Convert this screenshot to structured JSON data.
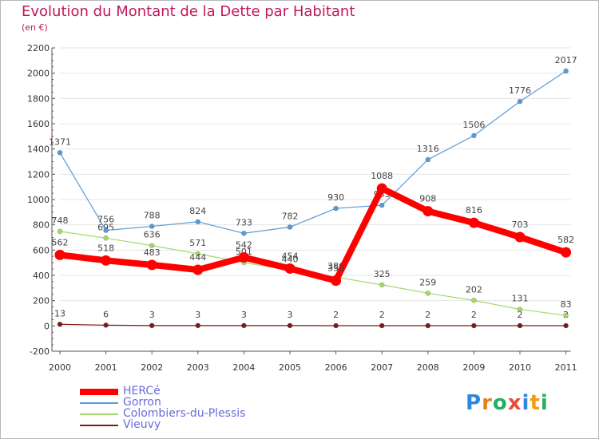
{
  "title": "Evolution du Montant de la Dette par Habitant",
  "subtitle": "(en €)",
  "logo": {
    "text": "Proxiti",
    "letter_colors": [
      "#2e86de",
      "#e67e22",
      "#27ae60",
      "#e74c3c",
      "#2e86de",
      "#f39c12",
      "#27ae60"
    ]
  },
  "colors": {
    "axis": "#555555",
    "grid": "#e6e6e6",
    "tick_text": "#333333",
    "axis_minor_tick": "#c2185b",
    "label_text": "#444444",
    "legend_text": "#6a6ae0",
    "frame": "#b8b8b8"
  },
  "chart_data": {
    "type": "line",
    "title": "Evolution du Montant de la Dette par Habitant",
    "subtitle": "(en €)",
    "categories": [
      "2000",
      "2001",
      "2002",
      "2003",
      "2004",
      "2005",
      "2006",
      "2007",
      "2008",
      "2009",
      "2010",
      "2011"
    ],
    "ylim": [
      -200,
      2200
    ],
    "yticks": [
      -200,
      0,
      200,
      400,
      600,
      800,
      1000,
      1200,
      1400,
      1600,
      1800,
      2000,
      2200
    ],
    "grid": "horizontal",
    "legend_position": "bottom-left",
    "series": [
      {
        "name": "Vieuvy",
        "color": "#7b1c1c",
        "values": [
          13,
          6,
          3,
          3,
          3,
          3,
          2,
          2,
          2,
          2,
          2,
          2
        ],
        "labels": [
          "13",
          "6",
          "3",
          "3",
          "3",
          "3",
          "2",
          "2",
          "2",
          "2",
          "2",
          "2"
        ]
      },
      {
        "name": "Colombiers-du-Plessis",
        "color": "#a5d86b",
        "values": [
          748,
          695,
          636,
          571,
          501,
          440,
          386,
          325,
          259,
          202,
          131,
          83
        ],
        "labels": [
          "748",
          "695",
          "636",
          "571",
          "501",
          "440",
          "386",
          "325",
          "259",
          "202",
          "131",
          "83"
        ]
      },
      {
        "name": "Gorron",
        "color": "#5b9bd5",
        "values": [
          1371,
          756,
          788,
          824,
          733,
          782,
          930,
          955,
          1316,
          1506,
          1776,
          2017
        ],
        "labels": [
          "1371",
          "756",
          "788",
          "824",
          "733",
          "782",
          "930",
          "955",
          "1316",
          "1506",
          "1776",
          "2017"
        ]
      },
      {
        "name": "HERCé",
        "color": "#ff0000",
        "values": [
          562,
          518,
          483,
          444,
          542,
          454,
          358,
          1088,
          908,
          816,
          703,
          582
        ],
        "labels": [
          "562",
          "518",
          "483",
          "444",
          "542",
          "454",
          "358",
          "1088",
          "908",
          "816",
          "703",
          "582"
        ]
      }
    ],
    "legend": [
      {
        "name": "HERCé",
        "color": "#ff0000",
        "weight": "thick"
      },
      {
        "name": "Gorron",
        "color": "#5b9bd5",
        "weight": "thin"
      },
      {
        "name": "Colombiers-du-Plessis",
        "color": "#a5d86b",
        "weight": "thin"
      },
      {
        "name": "Vieuvy",
        "color": "#7b1c1c",
        "weight": "thin"
      }
    ]
  }
}
